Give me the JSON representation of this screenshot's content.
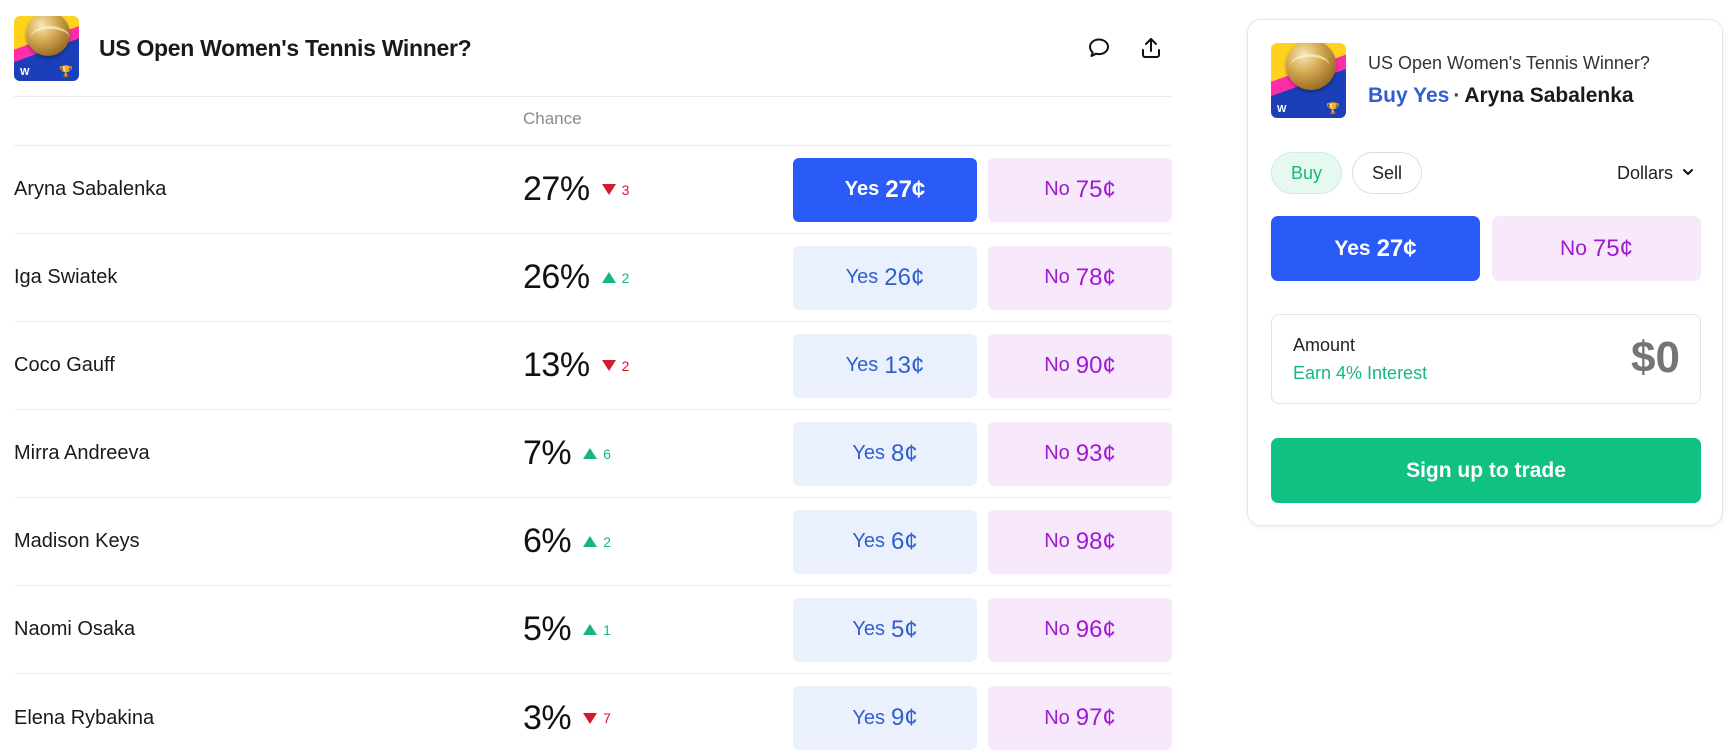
{
  "market": {
    "title": "US Open Women's Tennis Winner?",
    "logo_icons": [
      "tennis-ball-icon",
      "trophy-icon"
    ],
    "logo_letter": "W",
    "icons": [
      "comment-icon",
      "share-icon"
    ],
    "column_chance": "Chance",
    "rows": [
      {
        "name": "Aryna Sabalenka",
        "chance": "27%",
        "delta": "3",
        "direction": "down",
        "yes_label": "Yes",
        "yes_price": "27¢",
        "no_label": "No",
        "no_price": "75¢",
        "selected": true
      },
      {
        "name": "Iga Swiatek",
        "chance": "26%",
        "delta": "2",
        "direction": "up",
        "yes_label": "Yes",
        "yes_price": "26¢",
        "no_label": "No",
        "no_price": "78¢",
        "selected": false
      },
      {
        "name": "Coco Gauff",
        "chance": "13%",
        "delta": "2",
        "direction": "down",
        "yes_label": "Yes",
        "yes_price": "13¢",
        "no_label": "No",
        "no_price": "90¢",
        "selected": false
      },
      {
        "name": "Mirra Andreeva",
        "chance": "7%",
        "delta": "6",
        "direction": "up",
        "yes_label": "Yes",
        "yes_price": "8¢",
        "no_label": "No",
        "no_price": "93¢",
        "selected": false
      },
      {
        "name": "Madison Keys",
        "chance": "6%",
        "delta": "2",
        "direction": "up",
        "yes_label": "Yes",
        "yes_price": "6¢",
        "no_label": "No",
        "no_price": "98¢",
        "selected": false
      },
      {
        "name": "Naomi Osaka",
        "chance": "5%",
        "delta": "1",
        "direction": "up",
        "yes_label": "Yes",
        "yes_price": "5¢",
        "no_label": "No",
        "no_price": "96¢",
        "selected": false
      },
      {
        "name": "Elena Rybakina",
        "chance": "3%",
        "delta": "7",
        "direction": "down",
        "yes_label": "Yes",
        "yes_price": "9¢",
        "no_label": "No",
        "no_price": "97¢",
        "selected": false
      }
    ]
  },
  "trade": {
    "market_title": "US Open Women's Tennis Winner?",
    "side_label": "Buy Yes",
    "separator": "·",
    "player": "Aryna Sabalenka",
    "buy_label": "Buy",
    "sell_label": "Sell",
    "currency": "Dollars",
    "yes_label": "Yes",
    "yes_price": "27¢",
    "no_label": "No",
    "no_price": "75¢",
    "amount_label": "Amount",
    "interest_label": "Earn 4% Interest",
    "amount_placeholder": "$0",
    "signup_label": "Sign up to trade"
  },
  "colors": {
    "yes_active": "#2a5bf6",
    "yes_inactive_bg": "#eaf0fc",
    "no_bg": "#f8e8fc",
    "no_text": "#9f1bd0",
    "up": "#16b87a",
    "down": "#d11c2c",
    "signup": "#10c282"
  }
}
